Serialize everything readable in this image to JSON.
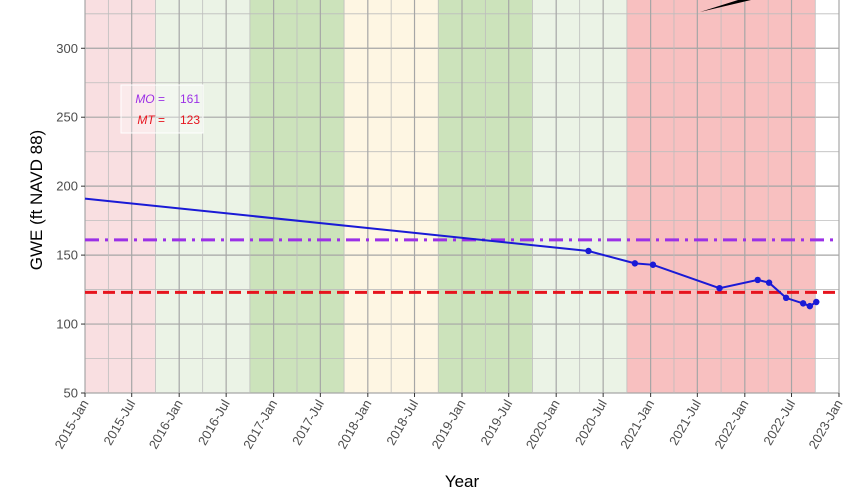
{
  "chart_data": {
    "type": "line",
    "xlabel": "Year",
    "ylabel": "GWE (ft NAVD 88)",
    "ylim": [
      50,
      335
    ],
    "y_ticks": [
      50,
      100,
      150,
      200,
      250,
      300
    ],
    "x_range": [
      "2015-01-01",
      "2023-01-01"
    ],
    "x_tick_labels": [
      "2015-Jan",
      "2015-Jul",
      "2016-Jan",
      "2016-Jul",
      "2017-Jan",
      "2017-Jul",
      "2018-Jan",
      "2018-Jul",
      "2019-Jan",
      "2019-Jul",
      "2020-Jan",
      "2020-Jul",
      "2021-Jan",
      "2021-Jul",
      "2022-Jan",
      "2022-Jul",
      "2023-Jan"
    ],
    "grid": true,
    "background_bands": [
      {
        "start": "2015-01-01",
        "end": "2015-10-01",
        "color": "#f9dfe1"
      },
      {
        "start": "2015-10-01",
        "end": "2016-10-01",
        "color": "#ebf3e6"
      },
      {
        "start": "2016-10-01",
        "end": "2017-10-01",
        "color": "#cce3bb"
      },
      {
        "start": "2017-10-01",
        "end": "2018-10-01",
        "color": "#fef6e3"
      },
      {
        "start": "2018-10-01",
        "end": "2019-10-01",
        "color": "#cce3bb"
      },
      {
        "start": "2019-10-01",
        "end": "2020-10-01",
        "color": "#ebf3e6"
      },
      {
        "start": "2020-10-01",
        "end": "2022-10-01",
        "color": "#f8c0c0"
      }
    ],
    "series": [
      {
        "type": "line",
        "color": "#1a1ad6",
        "points": [
          {
            "x": "2015-01-01",
            "y": 191
          },
          {
            "x": "2020-05-05",
            "y": 153
          },
          {
            "x": "2020-11-01",
            "y": 144
          },
          {
            "x": "2021-01-10",
            "y": 143
          },
          {
            "x": "2021-09-25",
            "y": 126
          },
          {
            "x": "2022-02-20",
            "y": 132
          },
          {
            "x": "2022-04-05",
            "y": 130
          },
          {
            "x": "2022-06-10",
            "y": 119
          },
          {
            "x": "2022-08-15",
            "y": 115
          },
          {
            "x": "2022-09-10",
            "y": 113
          },
          {
            "x": "2022-10-05",
            "y": 116
          }
        ],
        "marker_start_index": 1
      }
    ],
    "reference_lines": [
      {
        "label": "MO",
        "value": 161,
        "color": "#9b30e6",
        "style": "dashdot"
      },
      {
        "label": "MT",
        "value": 123,
        "color": "#e6141e",
        "style": "dashed"
      }
    ],
    "legend": {
      "placement": "top-left",
      "items": [
        {
          "label": "MO",
          "eq": " = ",
          "value": "161",
          "color": "#9b30e6"
        },
        {
          "label": "MT",
          "eq": " = ",
          "value": "123",
          "color": "#e6141e"
        }
      ]
    }
  }
}
